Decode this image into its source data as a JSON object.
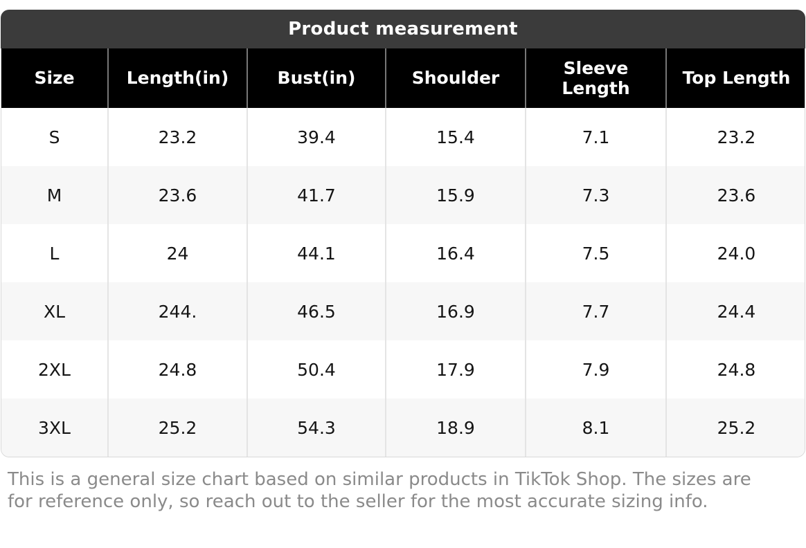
{
  "title": "Product measurement",
  "table": {
    "headers": [
      "Size",
      "Length(in)",
      "Bust(in)",
      "Shoulder",
      "Sleeve Length",
      "Top Length"
    ],
    "rows": [
      [
        "S",
        "23.2",
        "39.4",
        "15.4",
        "7.1",
        "23.2"
      ],
      [
        "M",
        "23.6",
        "41.7",
        "15.9",
        "7.3",
        "23.6"
      ],
      [
        "L",
        "24",
        "44.1",
        "16.4",
        "7.5",
        "24.0"
      ],
      [
        "XL",
        "244.",
        "46.5",
        "16.9",
        "7.7",
        "24.4"
      ],
      [
        "2XL",
        "24.8",
        "50.4",
        "17.9",
        "7.9",
        "24.8"
      ],
      [
        "3XL",
        "25.2",
        "54.3",
        "18.9",
        "8.1",
        "25.2"
      ]
    ]
  },
  "footer_note": "This is a general size chart based on similar products in TikTok Shop. The sizes are for reference only, so reach out to the seller for the most accurate sizing info.",
  "colors": {
    "title_bar_bg": "#3b3b3b",
    "header_bg": "#000000",
    "header_text": "#ffffff",
    "row_alt_bg": "#f7f7f7",
    "header_separator": "#777777",
    "body_separator": "#e4e4e4",
    "outer_border": "#d8d8d8",
    "footer_text": "#8a8a8a"
  },
  "chart_data": {
    "type": "table",
    "title": "Product measurement",
    "columns": [
      "Size",
      "Length(in)",
      "Bust(in)",
      "Shoulder",
      "Sleeve Length",
      "Top Length"
    ],
    "rows": [
      [
        "S",
        "23.2",
        "39.4",
        "15.4",
        "7.1",
        "23.2"
      ],
      [
        "M",
        "23.6",
        "41.7",
        "15.9",
        "7.3",
        "23.6"
      ],
      [
        "L",
        "24",
        "44.1",
        "16.4",
        "7.5",
        "24.0"
      ],
      [
        "XL",
        "244.",
        "46.5",
        "16.9",
        "7.7",
        "24.4"
      ],
      [
        "2XL",
        "24.8",
        "50.4",
        "17.9",
        "7.9",
        "24.8"
      ],
      [
        "3XL",
        "25.2",
        "54.3",
        "18.9",
        "8.1",
        "25.2"
      ]
    ],
    "notes": "Size chart graphic; XL Length cell shows the literal value '244.' as rendered in the image."
  }
}
